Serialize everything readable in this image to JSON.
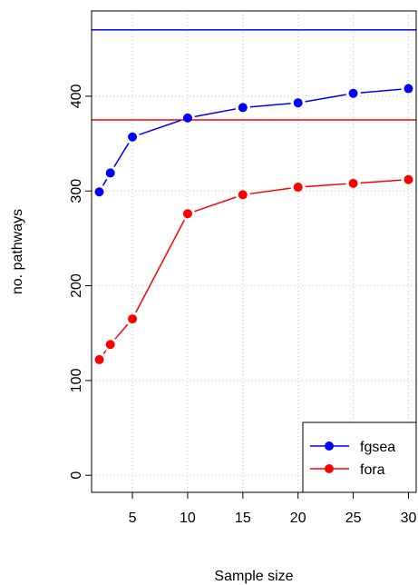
{
  "chart_data": {
    "type": "line",
    "xlabel": "Sample size",
    "ylabel": "no. pathways",
    "x_ticks": [
      5,
      10,
      15,
      20,
      25,
      30
    ],
    "y_ticks": [
      0,
      100,
      200,
      300,
      400
    ],
    "xlim": [
      1.3,
      30.7
    ],
    "ylim": [
      -18,
      490
    ],
    "grid": true,
    "legend_position": "bottom-right",
    "series": [
      {
        "name": "fgsea",
        "color": "#0000ff",
        "x": [
          2,
          3,
          5,
          10,
          15,
          20,
          25,
          30
        ],
        "y": [
          299,
          319,
          357,
          377,
          388,
          393,
          403,
          408
        ],
        "reference_line": 470
      },
      {
        "name": "fora",
        "color": "#ff0000",
        "x": [
          2,
          3,
          5,
          10,
          15,
          20,
          25,
          30
        ],
        "y": [
          122,
          138,
          165,
          276,
          296,
          304,
          308,
          312
        ],
        "reference_line": 375
      }
    ]
  }
}
